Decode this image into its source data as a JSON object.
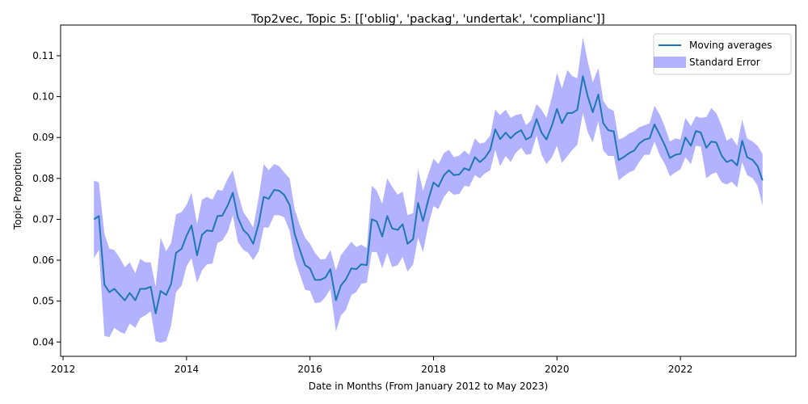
{
  "chart_data": {
    "type": "line",
    "title": "Top2vec, Topic 5: [['oblig', 'packag', 'undertak', 'complianc']]",
    "xlabel": "Date in Months (From January 2012 to May 2023)",
    "ylabel": "Topic Proportion",
    "xlim": [
      2011.96,
      2023.87
    ],
    "ylim": [
      0.0365,
      0.1175
    ],
    "x_ticks": [
      2012,
      2014,
      2016,
      2018,
      2020,
      2022
    ],
    "y_ticks": [
      0.04,
      0.05,
      0.06,
      0.07,
      0.08,
      0.09,
      0.1,
      0.11
    ],
    "y_tick_labels": [
      "0.04",
      "0.05",
      "0.06",
      "0.07",
      "0.08",
      "0.09",
      "0.10",
      "0.11"
    ],
    "grid": false,
    "legend_position": "top-right",
    "series": [
      {
        "name": "Moving averages",
        "color": "#1f77b4",
        "x": [
          2012.5,
          2012.58,
          2012.67,
          2012.75,
          2012.83,
          2012.92,
          2013.0,
          2013.08,
          2013.17,
          2013.25,
          2013.33,
          2013.42,
          2013.5,
          2013.58,
          2013.67,
          2013.75,
          2013.83,
          2013.92,
          2014.0,
          2014.08,
          2014.17,
          2014.25,
          2014.33,
          2014.42,
          2014.5,
          2014.58,
          2014.67,
          2014.75,
          2014.83,
          2014.92,
          2015.0,
          2015.08,
          2015.17,
          2015.25,
          2015.33,
          2015.42,
          2015.5,
          2015.58,
          2015.67,
          2015.75,
          2015.83,
          2015.92,
          2016.0,
          2016.08,
          2016.17,
          2016.25,
          2016.33,
          2016.42,
          2016.5,
          2016.58,
          2016.67,
          2016.75,
          2016.83,
          2016.92,
          2017.0,
          2017.08,
          2017.17,
          2017.25,
          2017.33,
          2017.42,
          2017.5,
          2017.58,
          2017.67,
          2017.75,
          2017.83,
          2017.92,
          2018.0,
          2018.08,
          2018.17,
          2018.25,
          2018.33,
          2018.42,
          2018.5,
          2018.58,
          2018.67,
          2018.75,
          2018.83,
          2018.92,
          2019.0,
          2019.08,
          2019.17,
          2019.25,
          2019.33,
          2019.42,
          2019.5,
          2019.58,
          2019.67,
          2019.75,
          2019.83,
          2019.92,
          2020.0,
          2020.08,
          2020.17,
          2020.25,
          2020.33,
          2020.42,
          2020.5,
          2020.58,
          2020.67,
          2020.75,
          2020.83,
          2020.92,
          2021.0,
          2021.08,
          2021.17,
          2021.25,
          2021.33,
          2021.42,
          2021.5,
          2021.58,
          2021.67,
          2021.75,
          2021.83,
          2021.92,
          2022.0,
          2022.08,
          2022.17,
          2022.25,
          2022.33,
          2022.42,
          2022.5,
          2022.58,
          2022.67,
          2022.75,
          2022.83,
          2022.92,
          2023.0,
          2023.08,
          2023.17,
          2023.25,
          2023.33
        ],
        "values": [
          0.07,
          0.0708,
          0.054,
          0.0522,
          0.053,
          0.0515,
          0.0502,
          0.052,
          0.0502,
          0.053,
          0.053,
          0.0535,
          0.047,
          0.0525,
          0.0515,
          0.0542,
          0.0618,
          0.0628,
          0.066,
          0.0685,
          0.0612,
          0.0662,
          0.0673,
          0.0671,
          0.0708,
          0.0709,
          0.0735,
          0.0765,
          0.0705,
          0.0674,
          0.0662,
          0.064,
          0.069,
          0.0755,
          0.075,
          0.0772,
          0.077,
          0.076,
          0.0735,
          0.0665,
          0.0628,
          0.0588,
          0.058,
          0.0552,
          0.0552,
          0.0558,
          0.0578,
          0.0502,
          0.0538,
          0.0553,
          0.058,
          0.0578,
          0.059,
          0.0588,
          0.07,
          0.0695,
          0.0658,
          0.0708,
          0.0678,
          0.0674,
          0.0688,
          0.064,
          0.0652,
          0.074,
          0.0696,
          0.075,
          0.079,
          0.078,
          0.0808,
          0.082,
          0.0808,
          0.081,
          0.0825,
          0.082,
          0.0852,
          0.084,
          0.085,
          0.087,
          0.092,
          0.0896,
          0.0912,
          0.0898,
          0.091,
          0.0918,
          0.0895,
          0.0902,
          0.0945,
          0.0912,
          0.0895,
          0.093,
          0.097,
          0.0935,
          0.096,
          0.096,
          0.0968,
          0.105,
          0.1,
          0.0962,
          0.1005,
          0.0935,
          0.0918,
          0.0915,
          0.0845,
          0.0852,
          0.0862,
          0.0868,
          0.0885,
          0.0895,
          0.0898,
          0.0932,
          0.0905,
          0.088,
          0.085,
          0.0858,
          0.086,
          0.09,
          0.088,
          0.0916,
          0.0912,
          0.0875,
          0.089,
          0.0888,
          0.0855,
          0.084,
          0.0845,
          0.0832,
          0.0892,
          0.0852,
          0.0845,
          0.083,
          0.0795
        ]
      },
      {
        "name": "Standard Error",
        "color": "#0000ff",
        "upper": [
          0.0795,
          0.079,
          0.0665,
          0.0628,
          0.0625,
          0.0605,
          0.0583,
          0.0595,
          0.0568,
          0.0603,
          0.0595,
          0.0595,
          0.0535,
          0.0655,
          0.0622,
          0.0642,
          0.0712,
          0.0718,
          0.0735,
          0.0765,
          0.0688,
          0.0748,
          0.0755,
          0.0748,
          0.0772,
          0.077,
          0.08,
          0.082,
          0.0765,
          0.0718,
          0.07,
          0.068,
          0.0755,
          0.0835,
          0.082,
          0.0835,
          0.083,
          0.0815,
          0.08,
          0.0725,
          0.0688,
          0.0655,
          0.064,
          0.0618,
          0.0602,
          0.0603,
          0.0625,
          0.0575,
          0.0612,
          0.0628,
          0.0645,
          0.0632,
          0.0638,
          0.063,
          0.0782,
          0.077,
          0.0738,
          0.08,
          0.078,
          0.076,
          0.0768,
          0.071,
          0.0715,
          0.0822,
          0.077,
          0.0812,
          0.0848,
          0.0835,
          0.0862,
          0.087,
          0.0852,
          0.0856,
          0.0868,
          0.0858,
          0.0898,
          0.0885,
          0.0888,
          0.0905,
          0.0968,
          0.0955,
          0.0968,
          0.0948,
          0.0955,
          0.0958,
          0.093,
          0.0942,
          0.0982,
          0.0968,
          0.0948,
          0.1,
          0.1058,
          0.102,
          0.1065,
          0.105,
          0.1045,
          0.1145,
          0.1085,
          0.1035,
          0.107,
          0.099,
          0.0972,
          0.0965,
          0.0895,
          0.09,
          0.091,
          0.0915,
          0.0925,
          0.093,
          0.0935,
          0.0978,
          0.0955,
          0.0925,
          0.089,
          0.0898,
          0.0895,
          0.0948,
          0.0928,
          0.0952,
          0.0948,
          0.095,
          0.0972,
          0.096,
          0.0928,
          0.0892,
          0.09,
          0.088,
          0.0944,
          0.0898,
          0.089,
          0.088,
          0.086
        ],
        "lower": [
          0.0605,
          0.0625,
          0.0415,
          0.0412,
          0.0435,
          0.0425,
          0.042,
          0.0445,
          0.0435,
          0.0458,
          0.0465,
          0.0475,
          0.0402,
          0.0398,
          0.0402,
          0.044,
          0.0522,
          0.0538,
          0.0585,
          0.0605,
          0.0545,
          0.0575,
          0.059,
          0.0592,
          0.0642,
          0.0648,
          0.067,
          0.071,
          0.0645,
          0.0625,
          0.0618,
          0.06,
          0.0622,
          0.068,
          0.068,
          0.071,
          0.071,
          0.0705,
          0.0672,
          0.0605,
          0.0568,
          0.0528,
          0.0525,
          0.0495,
          0.0497,
          0.051,
          0.053,
          0.0425,
          0.0465,
          0.0478,
          0.0515,
          0.0522,
          0.0542,
          0.0545,
          0.062,
          0.062,
          0.058,
          0.0618,
          0.0583,
          0.0588,
          0.0608,
          0.0572,
          0.059,
          0.0655,
          0.062,
          0.0688,
          0.0732,
          0.0725,
          0.0755,
          0.077,
          0.076,
          0.0762,
          0.0782,
          0.078,
          0.0808,
          0.08,
          0.0812,
          0.082,
          0.087,
          0.083,
          0.0855,
          0.084,
          0.0862,
          0.0875,
          0.0858,
          0.086,
          0.0905,
          0.0858,
          0.0835,
          0.0852,
          0.088,
          0.0838,
          0.0855,
          0.087,
          0.0882,
          0.096,
          0.0912,
          0.0888,
          0.094,
          0.0868,
          0.0855,
          0.0855,
          0.0795,
          0.0805,
          0.0815,
          0.082,
          0.084,
          0.0858,
          0.0858,
          0.089,
          0.0855,
          0.0835,
          0.0805,
          0.0815,
          0.0822,
          0.0852,
          0.0835,
          0.088,
          0.0878,
          0.08,
          0.081,
          0.0815,
          0.079,
          0.0785,
          0.0792,
          0.0778,
          0.084,
          0.0808,
          0.08,
          0.0782,
          0.0733
        ]
      }
    ]
  }
}
